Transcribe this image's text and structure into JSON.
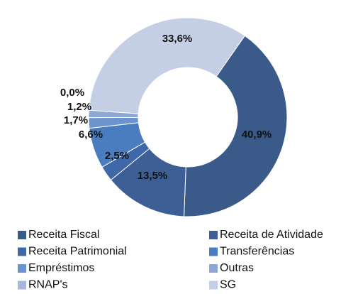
{
  "chart_data": {
    "type": "donut",
    "categories": [
      "Receita Fiscal",
      "Receita de Atividade",
      "Receita Patrimonial",
      "Transferências",
      "Empréstimos",
      "Outras",
      "RNAP's",
      "SG"
    ],
    "values": [
      40.9,
      13.5,
      2.5,
      6.6,
      1.7,
      1.2,
      0.0,
      33.6
    ],
    "value_labels": [
      "40,9%",
      "13,5%",
      "2,5%",
      "6,6%",
      "1,7%",
      "1,2%",
      "0,0%",
      "33,6%"
    ],
    "colors": [
      "#3a5a8a",
      "#3d5f96",
      "#4068a8",
      "#4a7dc0",
      "#6d93cc",
      "#8ea7d3",
      "#a4b7dc",
      "#c4cee4"
    ],
    "legend": "bottom"
  }
}
